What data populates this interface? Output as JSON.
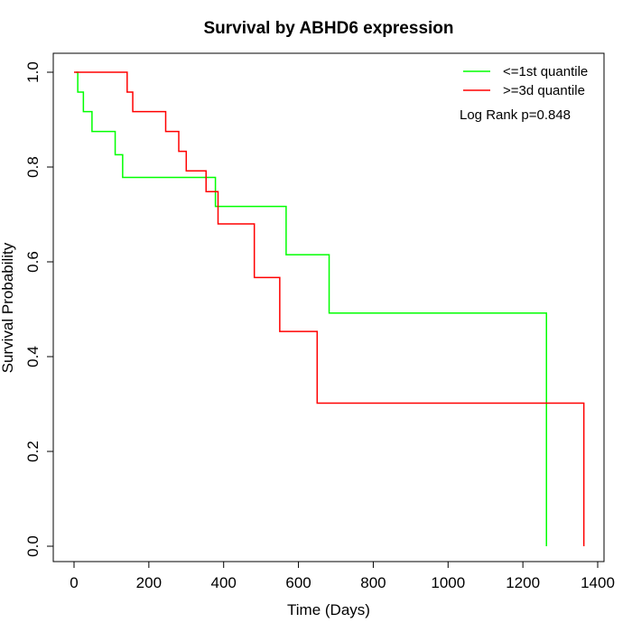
{
  "chart_data": {
    "type": "line",
    "step": true,
    "title": "Survival by ABHD6 expression",
    "xlabel": "Time (Days)",
    "ylabel": "Survival Probability",
    "xlim": [
      0,
      1400
    ],
    "ylim": [
      0,
      1
    ],
    "xticks": [
      0,
      200,
      400,
      600,
      800,
      1000,
      1200,
      1400
    ],
    "yticks": [
      0.0,
      0.2,
      0.4,
      0.6,
      0.8,
      1.0
    ],
    "xtick_labels": [
      "0",
      "200",
      "400",
      "600",
      "800",
      "1000",
      "1200",
      "1400"
    ],
    "ytick_labels": [
      "0.0",
      "0.2",
      "0.4",
      "0.6",
      "0.8",
      "1.0"
    ],
    "grid": false,
    "legend_position": "top-right",
    "series": [
      {
        "name": "<=1st quantile",
        "color": "#00ff00",
        "x": [
          5,
          10,
          25,
          48,
          110,
          130,
          378,
          567,
          682,
          1263
        ],
        "y": [
          1.0,
          0.958,
          0.917,
          0.875,
          0.826,
          0.778,
          0.717,
          0.615,
          0.492,
          0.0
        ]
      },
      {
        "name": ">=3d quantile",
        "color": "#ff0000",
        "x": [
          0,
          142,
          157,
          245,
          280,
          300,
          353,
          385,
          482,
          550,
          650,
          1363
        ],
        "y": [
          1.0,
          0.958,
          0.917,
          0.875,
          0.833,
          0.792,
          0.748,
          0.68,
          0.567,
          0.453,
          0.302,
          0.0
        ]
      }
    ],
    "annotations": [
      "Log Rank p=0.848"
    ]
  }
}
